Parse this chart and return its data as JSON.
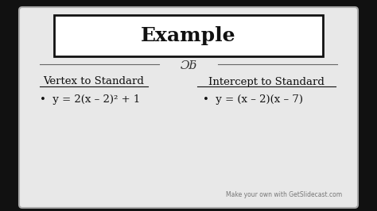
{
  "title": "Example",
  "bg_outer": "#111111",
  "bg_slide": "#d8d8d8",
  "bg_box": "#ffffff",
  "box_border": "#111111",
  "title_fontsize": 18,
  "section1_header": "Vertex to Standard",
  "section1_eq": "y = 2(x – 2)² + 1",
  "section2_header": "Intercept to Standard",
  "section2_eq": "y = (x – 2)(x – 7)",
  "header_fontsize": 9.5,
  "eq_fontsize": 9.5,
  "watermark": "Make your own with GetSlidecast.com",
  "watermark_fontsize": 5.5,
  "slide_color": "#d0d0d0",
  "slide_inner_color": "#e8e8e8"
}
